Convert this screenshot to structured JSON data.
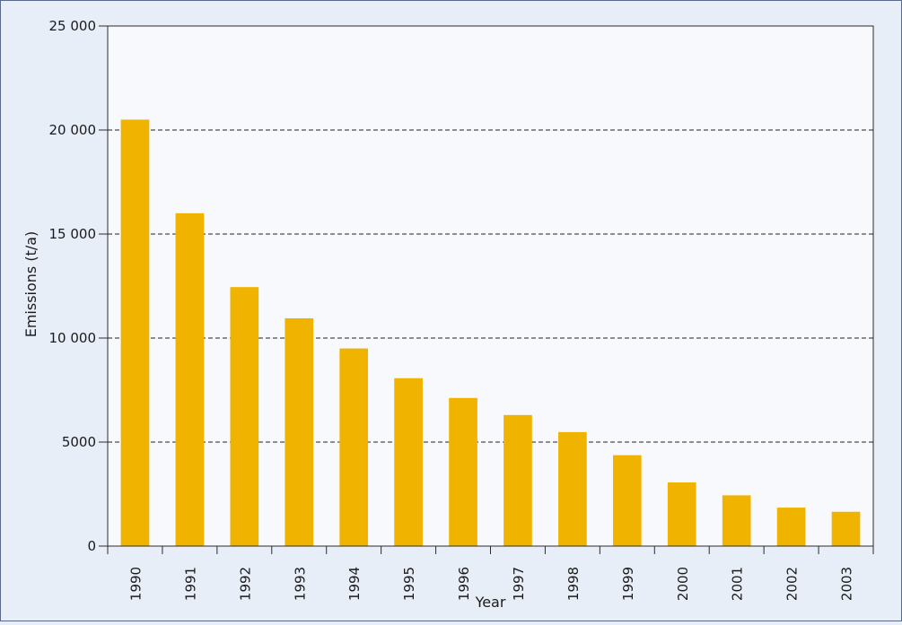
{
  "chart_data": {
    "type": "bar",
    "categories": [
      "1990",
      "1991",
      "1992",
      "1993",
      "1994",
      "1995",
      "1996",
      "1997",
      "1998",
      "1999",
      "2000",
      "2001",
      "2002",
      "2003"
    ],
    "values": [
      20500,
      16000,
      12450,
      10950,
      9500,
      8070,
      7120,
      6300,
      5480,
      4370,
      3060,
      2440,
      1850,
      1650
    ],
    "title": "",
    "xlabel": "Year",
    "ylabel": "Emissions (t/a)",
    "ylim": [
      0,
      25000
    ],
    "yticks": [
      0,
      5000,
      10000,
      15000,
      20000,
      25000
    ],
    "ytick_labels": [
      "0",
      "5000",
      "10 000",
      "15 000",
      "20 000",
      "25 000"
    ],
    "grid": "horizontal dashed",
    "colors": {
      "bar": "#f0b400",
      "plot_background": "#f7f9fc",
      "outer_background": "#e8eef8",
      "grid": "#222222"
    }
  }
}
